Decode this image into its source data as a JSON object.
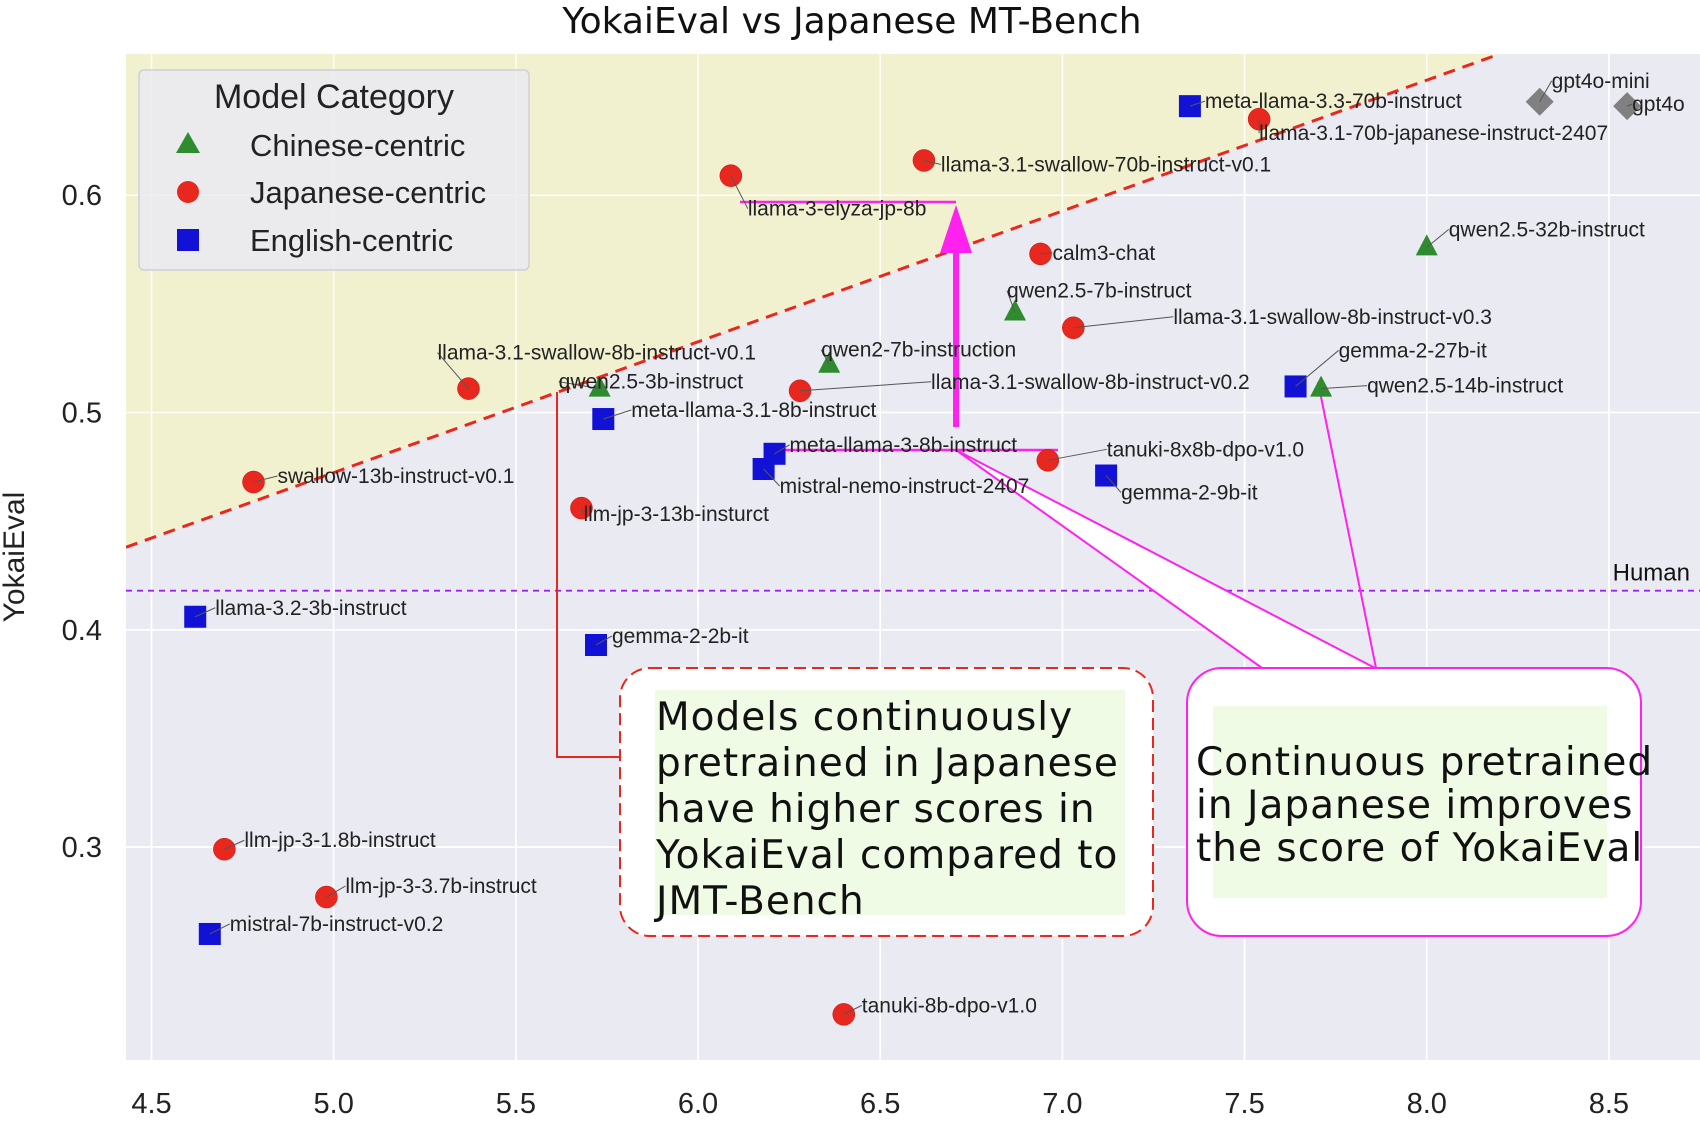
{
  "chart_data": {
    "type": "scatter",
    "title": "YokaiEval vs Japanese MT-Bench",
    "ylabel": "YokaiEval",
    "xlabel": "",
    "xlim": [
      4.43,
      8.75
    ],
    "ylim": [
      0.202,
      0.665
    ],
    "xticks": [
      "4.5",
      "5.0",
      "5.5",
      "6.0",
      "6.5",
      "7.0",
      "7.5",
      "8.0",
      "8.5"
    ],
    "yticks": [
      "0.3",
      "0.4",
      "0.5",
      "0.6"
    ],
    "grid": true,
    "legend": {
      "title": "Model Category",
      "placement": "top-left",
      "entries": [
        {
          "label": "Chinese-centric",
          "marker": "triangle",
          "color": "#2e8b2e"
        },
        {
          "label": "Japanese-centric",
          "marker": "circle",
          "color": "#e8281e"
        },
        {
          "label": "English-centric",
          "marker": "square",
          "color": "#1212d6"
        }
      ]
    },
    "human_line": {
      "y": 0.418,
      "label": "Human"
    },
    "trend_line": {
      "x": [
        4.43,
        8.2
      ],
      "y": [
        0.438,
        0.665
      ]
    },
    "series": [
      {
        "category": "Chinese-centric",
        "marker": "triangle",
        "color": "#2e8b2e",
        "points": [
          {
            "label": "qwen2.5-32b-instruct",
            "x": 8.0,
            "y": 0.576
          },
          {
            "label": "qwen2.5-7b-instruct",
            "x": 6.87,
            "y": 0.546
          },
          {
            "label": "qwen2-7b-instruction",
            "x": 6.36,
            "y": 0.522
          },
          {
            "label": "qwen2.5-3b-instruct",
            "x": 5.73,
            "y": 0.511
          },
          {
            "label": "qwen2.5-14b-instruct",
            "x": 7.71,
            "y": 0.511
          }
        ]
      },
      {
        "category": "Japanese-centric",
        "marker": "circle",
        "color": "#e8281e",
        "points": [
          {
            "label": "llama-3.1-70b-japanese-instruct-2407",
            "x": 7.54,
            "y": 0.635
          },
          {
            "label": "llama-3.1-swallow-70b-instruct-v0.1",
            "x": 6.62,
            "y": 0.616
          },
          {
            "label": "llama-3-elyza-jp-8b",
            "x": 6.09,
            "y": 0.609
          },
          {
            "label": "calm3-chat",
            "x": 6.94,
            "y": 0.573
          },
          {
            "label": "llama-3.1-swallow-8b-instruct-v0.3",
            "x": 7.03,
            "y": 0.539
          },
          {
            "label": "llama-3.1-swallow-8b-instruct-v0.1",
            "x": 5.37,
            "y": 0.511
          },
          {
            "label": "llama-3.1-swallow-8b-instruct-v0.2",
            "x": 6.28,
            "y": 0.51
          },
          {
            "label": "tanuki-8x8b-dpo-v1.0",
            "x": 6.96,
            "y": 0.478
          },
          {
            "label": "swallow-13b-instruct-v0.1",
            "x": 4.78,
            "y": 0.468
          },
          {
            "label": "llm-jp-3-13b-insturct",
            "x": 5.68,
            "y": 0.456
          },
          {
            "label": "llm-jp-3-1.8b-instruct",
            "x": 4.7,
            "y": 0.299
          },
          {
            "label": "llm-jp-3-3.7b-instruct",
            "x": 4.98,
            "y": 0.277
          },
          {
            "label": "tanuki-8b-dpo-v1.0",
            "x": 6.4,
            "y": 0.223
          }
        ]
      },
      {
        "category": "English-centric",
        "marker": "square",
        "color": "#1212d6",
        "points": [
          {
            "label": "meta-llama-3.3-70b-instruct",
            "x": 7.35,
            "y": 0.641
          },
          {
            "label": "gemma-2-27b-it",
            "x": 7.64,
            "y": 0.512
          },
          {
            "label": "meta-llama-3.1-8b-instruct",
            "x": 5.74,
            "y": 0.497
          },
          {
            "label": "meta-llama-3-8b-instruct",
            "x": 6.21,
            "y": 0.481
          },
          {
            "label": "mistral-nemo-instruct-2407",
            "x": 6.18,
            "y": 0.474
          },
          {
            "label": "gemma-2-9b-it",
            "x": 7.12,
            "y": 0.471
          },
          {
            "label": "llama-3.2-3b-instruct",
            "x": 4.62,
            "y": 0.406
          },
          {
            "label": "gemma-2-2b-it",
            "x": 5.72,
            "y": 0.393
          },
          {
            "label": "mistral-7b-instruct-v0.2",
            "x": 4.66,
            "y": 0.26
          }
        ]
      },
      {
        "category": "",
        "marker": "diamond",
        "color": "#808080",
        "points": [
          {
            "label": "gpt4o-mini",
            "x": 8.31,
            "y": 0.643
          },
          {
            "label": "gpt4o",
            "x": 8.55,
            "y": 0.641
          }
        ]
      }
    ],
    "annotations": [
      {
        "text": [
          "Models continuously",
          "pretrained in Japanese",
          "have higher scores in",
          "YokaiEval compared to",
          "JMT-Bench"
        ],
        "border": "#e8281e"
      },
      {
        "text": [
          "Continuous pretrained",
          "in Japanese improves",
          "the score of YokaiEval"
        ],
        "border": "#ff22ee"
      }
    ]
  }
}
